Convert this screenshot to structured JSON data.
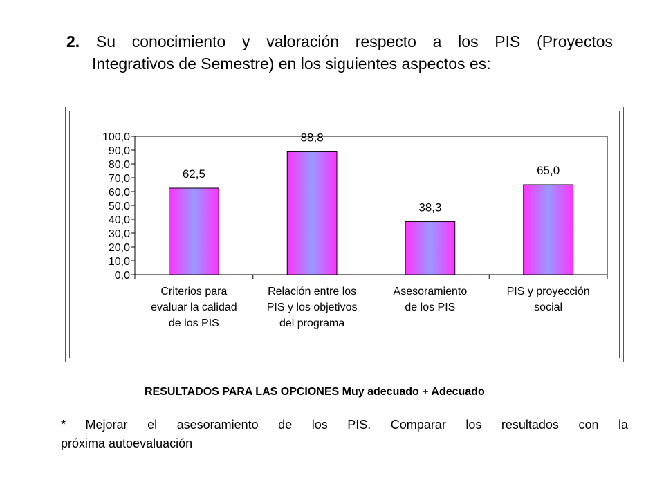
{
  "heading": {
    "number": "2.",
    "line1": "Su conocimiento y valoración respecto a los PIS (Proyectos",
    "line2": "Integrativos de Semestre) en los siguientes aspectos es:"
  },
  "chart_data": {
    "type": "bar",
    "categories": [
      [
        "Criterios para",
        "evaluar la calidad",
        "de los PIS"
      ],
      [
        "Relación entre los",
        "PIS y los objetivos",
        "del programa"
      ],
      [
        "Asesoramiento",
        "de los PIS"
      ],
      [
        "PIS y proyección",
        "social"
      ]
    ],
    "values": [
      62.5,
      88.8,
      38.3,
      65.0
    ],
    "data_labels": [
      "62,5",
      "88,8",
      "38,3",
      "65,0"
    ],
    "y_ticks": [
      "0,0",
      "10,0",
      "20,0",
      "30,0",
      "40,0",
      "50,0",
      "60,0",
      "70,0",
      "80,0",
      "90,0",
      "100,0"
    ],
    "ylim": [
      0,
      100
    ],
    "grid": false,
    "legend": "none",
    "bar_gradient": [
      "#ff33ff",
      "#9999ff",
      "#ff33ff"
    ]
  },
  "results_caption": "RESULTADOS PARA LAS OPCIONES Muy adecuado + Adecuado",
  "note": {
    "line1": "*  Mejorar el asesoramiento de los PIS.  Comparar los resultados con la",
    "line2": "próxima autoevaluación"
  }
}
